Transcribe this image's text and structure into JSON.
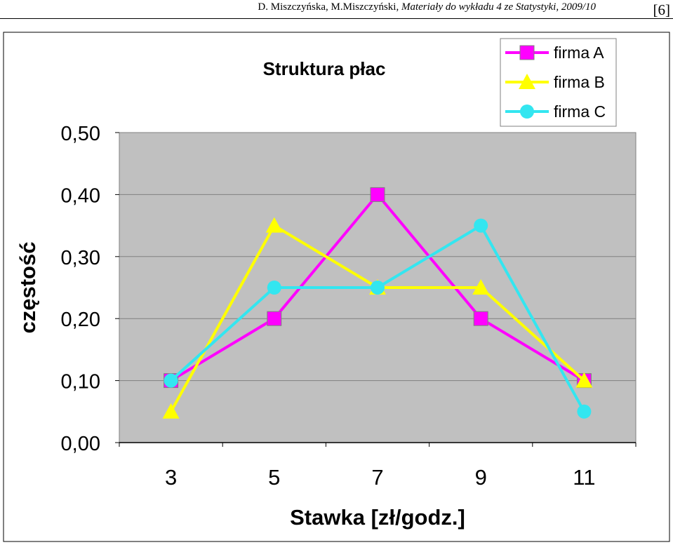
{
  "header": {
    "authors": "D. Miszczyńska, M.Miszczyński, ",
    "title": "Materiały do wykładu 4 ze Statystyki, 2009/10",
    "page": "[6]"
  },
  "chart_data": {
    "type": "line",
    "title": "Struktura płac",
    "xlabel": "Stawka [zł/godz.]",
    "ylabel": "częstość",
    "categories": [
      "3",
      "5",
      "7",
      "9",
      "11"
    ],
    "ylim": [
      0,
      0.5
    ],
    "yticks": [
      "0,00",
      "0,10",
      "0,20",
      "0,30",
      "0,40",
      "0,50"
    ],
    "grid": true,
    "legend_position": "top-right",
    "series": [
      {
        "name": "firma A",
        "values": [
          0.1,
          0.2,
          0.4,
          0.2,
          0.1
        ],
        "color": "#ff00ff",
        "marker": "square"
      },
      {
        "name": "firma B",
        "values": [
          0.05,
          0.35,
          0.25,
          0.25,
          0.1
        ],
        "color": "#ffff00",
        "marker": "triangle"
      },
      {
        "name": "firma C",
        "values": [
          0.1,
          0.25,
          0.25,
          0.35,
          0.05
        ],
        "color": "#33e6f0",
        "marker": "circle"
      }
    ],
    "plot_background": "#c0c0c0"
  }
}
